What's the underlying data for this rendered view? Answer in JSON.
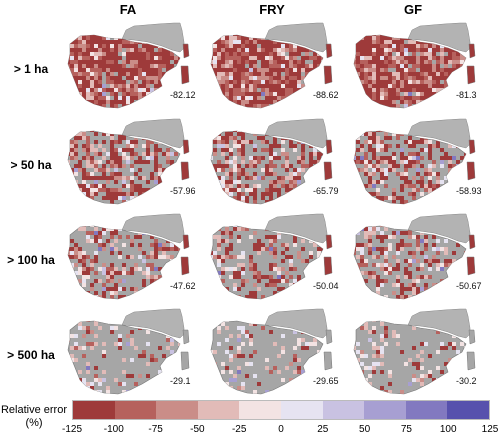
{
  "columns": [
    "FA",
    "FRY",
    "GF"
  ],
  "rows": [
    "> 1 ha",
    "> 50 ha",
    "> 100 ha",
    "> 500 ha"
  ],
  "values": [
    [
      "-82.12",
      "-88.62",
      "-81.3"
    ],
    [
      "-57.96",
      "-65.79",
      "-58.93"
    ],
    [
      "-47.62",
      "-50.04",
      "-50.67"
    ],
    [
      "-29.1",
      "-29.65",
      "-30.2"
    ]
  ],
  "red_fraction": [
    0.8,
    0.45,
    0.3,
    0.08
  ],
  "legend": {
    "title_line1": "Relative error",
    "title_line2": "(%)",
    "ticks": [
      "-125",
      "-100",
      "-75",
      "-50",
      "-25",
      "0",
      "25",
      "50",
      "75",
      "100",
      "125"
    ],
    "colors": [
      "#9e3a3a",
      "#b6615d",
      "#ca8d88",
      "#e2bbb8",
      "#f3e3e3",
      "#e6e3f1",
      "#c9c2e2",
      "#a79fd2",
      "#8279c0",
      "#5751ad"
    ]
  },
  "colors": {
    "france": "#b3b3b3",
    "no_data": "#a6a6a6",
    "light": "#f1dede",
    "red": "#9e3a3a"
  }
}
